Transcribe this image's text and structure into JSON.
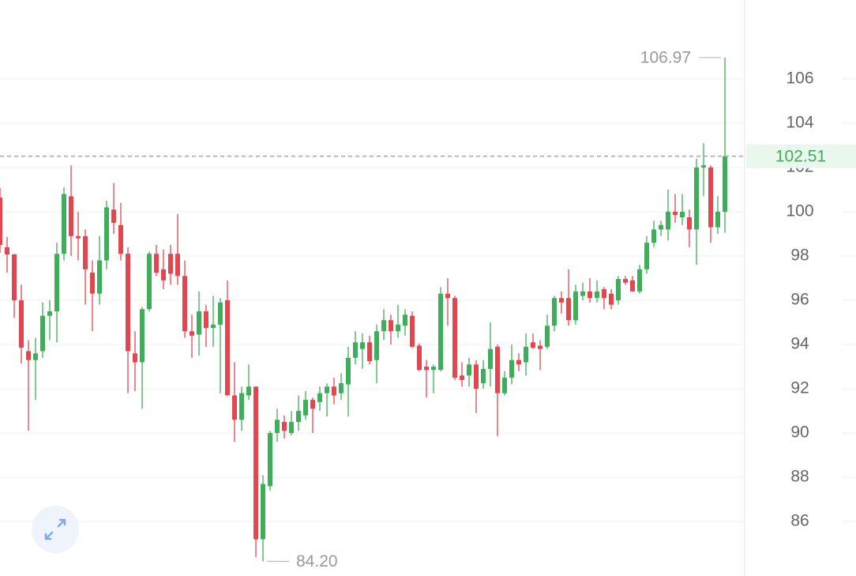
{
  "chart_data": {
    "type": "candlestick",
    "up_color": "#3fae5a",
    "down_color": "#e2474f",
    "open": [
      100.64,
      98.4,
      98.07,
      96.0,
      93.7,
      93.3,
      93.7,
      95.3,
      95.5,
      98.1,
      100.7,
      98.9,
      98.9,
      97.25,
      96.3,
      97.8,
      100.1,
      99.4,
      98.1,
      93.6,
      93.2,
      95.6,
      98.1,
      97.4,
      98.1,
      98.1,
      97.1,
      94.6,
      94.45,
      95.5,
      94.75,
      94.9,
      96.0,
      91.7,
      90.6,
      91.7,
      92.1,
      85.2,
      87.6,
      90.0,
      90.5,
      90.0,
      90.5,
      90.8,
      91.5,
      91.4,
      91.8,
      92.1,
      91.8,
      92.2,
      93.4,
      93.8,
      94.1,
      93.3,
      94.6,
      95.1,
      94.6,
      94.85,
      95.3,
      93.95,
      93.0,
      92.85,
      92.85,
      96.3,
      96.1,
      92.6,
      92.6,
      93.1,
      92.25,
      92.9,
      93.9,
      91.8,
      92.5,
      93.3,
      93.2,
      94.1,
      93.95,
      93.9,
      94.85,
      96.1,
      96.1,
      95.1,
      96.2,
      96.4,
      96.1,
      96.5,
      96.3,
      96.0,
      96.96,
      96.9,
      96.4,
      97.4,
      98.6,
      99.2,
      99.2,
      100.0,
      99.75,
      99.75,
      99.2,
      102.0,
      102.0,
      99.3,
      100.0
    ],
    "high": [
      101.07,
      98.86,
      98.1,
      96.7,
      94.2,
      94.3,
      95.9,
      96.0,
      98.6,
      101.1,
      102.1,
      100.0,
      99.2,
      97.8,
      98.9,
      100.5,
      101.3,
      100.4,
      98.4,
      94.6,
      95.7,
      98.2,
      98.5,
      98.3,
      98.5,
      99.9,
      97.8,
      95.35,
      96.4,
      95.8,
      96.2,
      96.1,
      96.9,
      93.2,
      92.1,
      93.1,
      92.1,
      88.1,
      90.1,
      91.1,
      90.8,
      91.0,
      91.7,
      91.9,
      91.6,
      92.1,
      92.25,
      92.5,
      92.7,
      93.9,
      94.6,
      94.5,
      94.4,
      94.9,
      95.6,
      95.35,
      95.8,
      95.6,
      95.5,
      94.05,
      93.3,
      93.1,
      96.6,
      97.0,
      96.2,
      93.2,
      93.4,
      93.3,
      93.3,
      95.0,
      94.0,
      92.8,
      94.0,
      93.6,
      94.5,
      94.5,
      94.2,
      95.35,
      96.2,
      96.4,
      97.4,
      96.7,
      96.8,
      97.0,
      96.9,
      96.6,
      96.5,
      97.1,
      97.1,
      97.1,
      97.6,
      98.9,
      99.6,
      99.6,
      101.0,
      100.8,
      100.8,
      100.1,
      102.4,
      103.1,
      102.1,
      100.7,
      106.97
    ],
    "low": [
      98.14,
      97.25,
      95.2,
      93.14,
      90.1,
      91.5,
      93.4,
      94.2,
      94.1,
      97.8,
      98.0,
      97.8,
      95.8,
      94.6,
      95.8,
      97.4,
      99.0,
      97.8,
      91.8,
      91.9,
      91.1,
      95.5,
      97.1,
      96.5,
      96.7,
      96.7,
      94.3,
      93.4,
      93.5,
      93.9,
      93.9,
      91.8,
      91.7,
      89.6,
      90.1,
      91.5,
      84.4,
      84.2,
      87.4,
      89.6,
      89.75,
      89.9,
      90.1,
      90.6,
      90.0,
      91.0,
      90.75,
      91.3,
      91.5,
      90.75,
      93.1,
      92.9,
      93.1,
      92.25,
      94.2,
      94.0,
      94.3,
      94.4,
      93.85,
      92.8,
      91.6,
      91.8,
      92.8,
      94.85,
      92.4,
      92.1,
      92.1,
      90.9,
      92.0,
      92.1,
      89.85,
      91.7,
      92.2,
      92.8,
      92.6,
      93.8,
      92.85,
      93.8,
      94.6,
      95.4,
      94.85,
      94.9,
      96.0,
      95.9,
      95.9,
      95.6,
      95.6,
      95.8,
      96.7,
      96.4,
      96.3,
      97.2,
      98.4,
      98.9,
      98.7,
      99.5,
      99.4,
      98.4,
      97.6,
      100.7,
      98.6,
      99.0,
      99.05
    ],
    "close": [
      98.5,
      98.07,
      96.0,
      93.86,
      93.3,
      93.6,
      95.3,
      95.5,
      98.1,
      100.8,
      98.9,
      98.8,
      97.4,
      96.3,
      97.8,
      100.2,
      99.5,
      98.1,
      93.7,
      93.2,
      95.6,
      98.1,
      97.25,
      96.9,
      97.2,
      97.1,
      94.6,
      94.4,
      95.5,
      94.75,
      94.9,
      95.9,
      91.7,
      90.6,
      91.8,
      92.1,
      85.2,
      87.7,
      90.0,
      90.6,
      90.1,
      90.5,
      91.0,
      91.5,
      91.1,
      91.8,
      92.1,
      91.7,
      92.25,
      93.4,
      94.1,
      94.1,
      93.25,
      94.6,
      95.1,
      94.6,
      94.9,
      95.35,
      93.9,
      92.85,
      92.85,
      93.0,
      96.3,
      96.1,
      92.5,
      92.4,
      93.1,
      92.0,
      92.9,
      93.8,
      91.8,
      92.5,
      93.3,
      93.1,
      93.9,
      93.85,
      93.8,
      94.85,
      96.1,
      95.9,
      95.1,
      96.4,
      96.4,
      96.1,
      96.4,
      96.1,
      95.8,
      96.96,
      96.8,
      96.4,
      97.4,
      98.6,
      99.2,
      99.4,
      100.0,
      99.85,
      100.0,
      99.2,
      102.0,
      102.1,
      99.3,
      100.0,
      102.51
    ],
    "ylim": [
      83.54,
      109.57
    ],
    "yticks": [
      86,
      88,
      90,
      92,
      94,
      96,
      98,
      100,
      102,
      104,
      106
    ],
    "grid": true,
    "max_label": 106.97,
    "min_label": {
      "value": 84.2,
      "label": "84.20"
    },
    "last_price": 102.51
  }
}
